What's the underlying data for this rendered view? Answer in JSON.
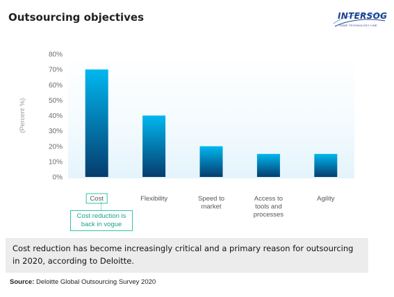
{
  "header": {
    "title": "Outsourcing objectives"
  },
  "logo": {
    "word": "INTERSOG",
    "tagline": "SOME TECHNOLOGY LINE"
  },
  "chart_data": {
    "type": "bar",
    "ylabel": "(Percent %)",
    "ylim": [
      0,
      80
    ],
    "ytick_labels": [
      "0%",
      "10%",
      "20%",
      "30%",
      "40%",
      "50%",
      "60%",
      "70%",
      "80%"
    ],
    "categories": [
      [
        "Cost"
      ],
      [
        "Flexibility"
      ],
      [
        "Speed to",
        "market"
      ],
      [
        "Access to",
        "tools and",
        "processes"
      ],
      [
        "Agility"
      ]
    ],
    "values": [
      70,
      40,
      20,
      15,
      15
    ],
    "colors": {
      "bar_top": "#00b7f0",
      "bar_bottom": "#063c6d",
      "plot_bg": "#e4f4fc",
      "axis_text": "#6b6b6b",
      "highlight": "#31c2a7"
    }
  },
  "callout": {
    "text_lines": [
      "Cost reduction is",
      "back in vogue"
    ]
  },
  "note": {
    "text": "Cost reduction has become increasingly critical and a primary reason for outsourcing in 2020, according to Deloitte."
  },
  "source": {
    "label": "Source:",
    "text": "Deloitte Global Outsourcing Survey 2020"
  }
}
